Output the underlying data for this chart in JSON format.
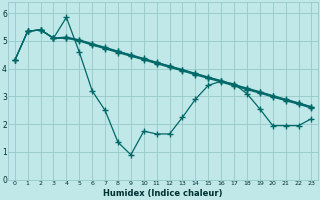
{
  "xlabel": "Humidex (Indice chaleur)",
  "bg_color": "#c0e8e8",
  "grid_color": "#98c8c8",
  "line_color": "#006868",
  "xlim": [
    -0.5,
    23.5
  ],
  "ylim": [
    0,
    6.4
  ],
  "xticks": [
    0,
    1,
    2,
    3,
    4,
    5,
    6,
    7,
    8,
    9,
    10,
    11,
    12,
    13,
    14,
    15,
    16,
    17,
    18,
    19,
    20,
    21,
    22,
    23
  ],
  "yticks": [
    0,
    1,
    2,
    3,
    4,
    5,
    6
  ],
  "line1_x": [
    0,
    1,
    2,
    3,
    4,
    5,
    6,
    7,
    8,
    9,
    10,
    11,
    12,
    13,
    14,
    15,
    16,
    17,
    18,
    19,
    20,
    21,
    22,
    23
  ],
  "line1_y": [
    4.3,
    5.35,
    5.4,
    5.1,
    5.1,
    5.0,
    4.85,
    4.72,
    4.58,
    4.45,
    4.32,
    4.18,
    4.05,
    3.92,
    3.78,
    3.65,
    3.52,
    3.38,
    3.25,
    3.12,
    2.98,
    2.85,
    2.72,
    2.58
  ],
  "line2_x": [
    0,
    1,
    2,
    3,
    4,
    5,
    6,
    7,
    8,
    9,
    10,
    11,
    12,
    13,
    14,
    15,
    16,
    17,
    18,
    19,
    20,
    21,
    22,
    23
  ],
  "line2_y": [
    4.3,
    5.35,
    5.4,
    5.1,
    5.12,
    5.02,
    4.88,
    4.75,
    4.62,
    4.48,
    4.35,
    4.22,
    4.08,
    3.95,
    3.82,
    3.68,
    3.55,
    3.42,
    3.28,
    3.15,
    3.02,
    2.88,
    2.75,
    2.62
  ],
  "line3_x": [
    0,
    1,
    2,
    3,
    4,
    5,
    6,
    7,
    8,
    9,
    10,
    11,
    12,
    13,
    14,
    15,
    16,
    17,
    18,
    19,
    20,
    21,
    22,
    23
  ],
  "line3_y": [
    4.3,
    5.35,
    5.4,
    5.1,
    5.14,
    5.04,
    4.9,
    4.77,
    4.63,
    4.5,
    4.37,
    4.23,
    4.1,
    3.97,
    3.83,
    3.7,
    3.57,
    3.43,
    3.3,
    3.17,
    3.03,
    2.9,
    2.77,
    2.63
  ],
  "wavy_x": [
    1,
    2,
    3,
    4,
    5,
    6,
    7,
    8,
    9,
    10,
    11,
    12,
    13,
    14,
    15,
    16,
    17,
    18,
    19,
    20,
    21,
    22,
    23
  ],
  "wavy_y": [
    5.35,
    5.4,
    5.1,
    5.85,
    4.6,
    3.2,
    2.5,
    1.35,
    0.9,
    1.75,
    1.65,
    1.65,
    2.25,
    2.9,
    3.4,
    3.55,
    3.45,
    3.1,
    2.55,
    1.95,
    1.95,
    1.95,
    2.2
  ]
}
